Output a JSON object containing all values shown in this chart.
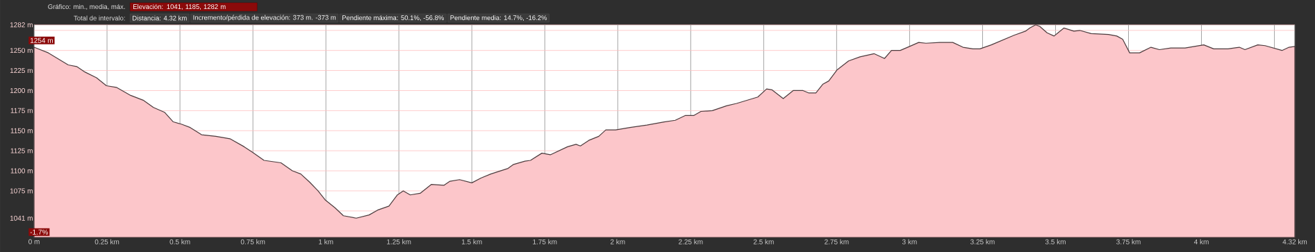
{
  "chart_data": {
    "type": "area",
    "title": "Gráfico: min., media, máx.",
    "subtitle": "Total de intervalo:",
    "annotations": [
      "Elevación: 1041, 1185, 1282 m",
      "Distancia: 4.32 km",
      "Incremento/pérdida de elevación: 373 m. -373 m",
      "Pendiente máxima: 50.1%, -56.8%",
      "Pendiente media: 14.7%, -16.2%",
      "-1.7%",
      {
        "text": "1254 m",
        "x": 0,
        "y": 1254
      }
    ],
    "x": [
      0,
      0.049,
      0.117,
      0.146,
      0.175,
      0.214,
      0.248,
      0.282,
      0.331,
      0.374,
      0.409,
      0.447,
      0.477,
      0.506,
      0.535,
      0.574,
      0.623,
      0.671,
      0.72,
      0.749,
      0.788,
      0.846,
      0.885,
      0.914,
      0.944,
      0.973,
      0.997,
      1.031,
      1.06,
      1.104,
      1.148,
      1.177,
      1.216,
      1.245,
      1.265,
      1.289,
      1.323,
      1.361,
      1.405,
      1.425,
      1.458,
      1.5,
      1.531,
      1.565,
      1.624,
      1.643,
      1.682,
      1.701,
      1.74,
      1.769,
      1.828,
      1.857,
      1.872,
      1.901,
      1.935,
      1.959,
      1.993,
      2.042,
      2.1,
      2.159,
      2.197,
      2.232,
      2.261,
      2.285,
      2.324,
      2.373,
      2.407,
      2.48,
      2.51,
      2.528,
      2.567,
      2.601,
      2.635,
      2.655,
      2.679,
      2.703,
      2.723,
      2.752,
      2.791,
      2.83,
      2.878,
      2.914,
      2.938,
      2.968,
      3.0,
      3.031,
      3.056,
      3.104,
      3.148,
      3.183,
      3.217,
      3.241,
      3.28,
      3.319,
      3.358,
      3.397,
      3.412,
      3.432,
      3.446,
      3.471,
      3.495,
      3.529,
      3.563,
      3.583,
      3.622,
      3.681,
      3.71,
      3.73,
      3.754,
      3.788,
      3.827,
      3.856,
      3.895,
      3.944,
      4.008,
      4.042,
      4.091,
      4.13,
      4.149,
      4.193,
      4.218,
      4.276,
      4.3,
      4.32
    ],
    "values": [
      1254,
      1247,
      1232,
      1230,
      1223,
      1216,
      1206,
      1204,
      1194,
      1188,
      1179,
      1173,
      1161,
      1158,
      1154,
      1145,
      1143,
      1140,
      1130,
      1123,
      1113,
      1110,
      1100,
      1096,
      1086,
      1075,
      1064,
      1054,
      1044,
      1041,
      1045,
      1051,
      1056,
      1070,
      1075,
      1070,
      1072,
      1083,
      1082,
      1087,
      1089,
      1085,
      1091,
      1096,
      1103,
      1108,
      1112,
      1113,
      1122,
      1120,
      1130,
      1133,
      1131,
      1138,
      1143,
      1151,
      1151,
      1154,
      1157,
      1161,
      1163,
      1169,
      1169,
      1174,
      1175,
      1181,
      1184,
      1192,
      1202,
      1201,
      1190,
      1200,
      1200,
      1197,
      1197,
      1208,
      1212,
      1226,
      1237,
      1242,
      1246,
      1240,
      1250,
      1250,
      1255,
      1260,
      1259,
      1260,
      1260,
      1254,
      1252,
      1252,
      1257,
      1263,
      1269,
      1274,
      1278,
      1282,
      1280,
      1272,
      1268,
      1278,
      1274,
      1275,
      1271,
      1270,
      1268,
      1264,
      1247,
      1247,
      1254,
      1251,
      1253,
      1253,
      1257,
      1252,
      1252,
      1254,
      1251,
      1257,
      1256,
      1250,
      1254,
      1255
    ],
    "color": "#fcc6ca",
    "xlim": [
      0,
      4.32
    ],
    "ylim": [
      1017,
      1282
    ],
    "xticks": [
      {
        "value": 0,
        "label": "0 m"
      },
      {
        "value": 0.25,
        "label": "0.25 km"
      },
      {
        "value": 0.5,
        "label": "0.5 km"
      },
      {
        "value": 0.75,
        "label": "0.75 km"
      },
      {
        "value": 1,
        "label": "1 km"
      },
      {
        "value": 1.25,
        "label": "1.25 km"
      },
      {
        "value": 1.5,
        "label": "1.5 km"
      },
      {
        "value": 1.75,
        "label": "1.75 km"
      },
      {
        "value": 2,
        "label": "2 km"
      },
      {
        "value": 2.25,
        "label": "2.25 km"
      },
      {
        "value": 2.5,
        "label": "2.5 km"
      },
      {
        "value": 2.75,
        "label": "2.75 km"
      },
      {
        "value": 3,
        "label": "3 km"
      },
      {
        "value": 3.25,
        "label": "3.25 km"
      },
      {
        "value": 3.5,
        "label": "3.5 km"
      },
      {
        "value": 3.75,
        "label": "3.75 km"
      },
      {
        "value": 4,
        "label": "4 km"
      },
      {
        "value": 4.25,
        "label": null
      },
      {
        "value": 4.32,
        "label": "4.32 km"
      }
    ],
    "yticks": [
      {
        "value": 1025,
        "label": null
      },
      {
        "value": 1041,
        "label": "1041 m"
      },
      {
        "value": 1050,
        "label": null
      },
      {
        "value": 1075,
        "label": "1075 m"
      },
      {
        "value": 1100,
        "label": "1100 m"
      },
      {
        "value": 1125,
        "label": "1125 m"
      },
      {
        "value": 1150,
        "label": "1150 m"
      },
      {
        "value": 1175,
        "label": "1175 m"
      },
      {
        "value": 1200,
        "label": "1200 m"
      },
      {
        "value": 1225,
        "label": "1225 m"
      },
      {
        "value": 1250,
        "label": "1250 m"
      },
      {
        "value": 1275,
        "label": null
      },
      {
        "value": 1282,
        "label": "1282 m"
      }
    ],
    "grid": true
  }
}
